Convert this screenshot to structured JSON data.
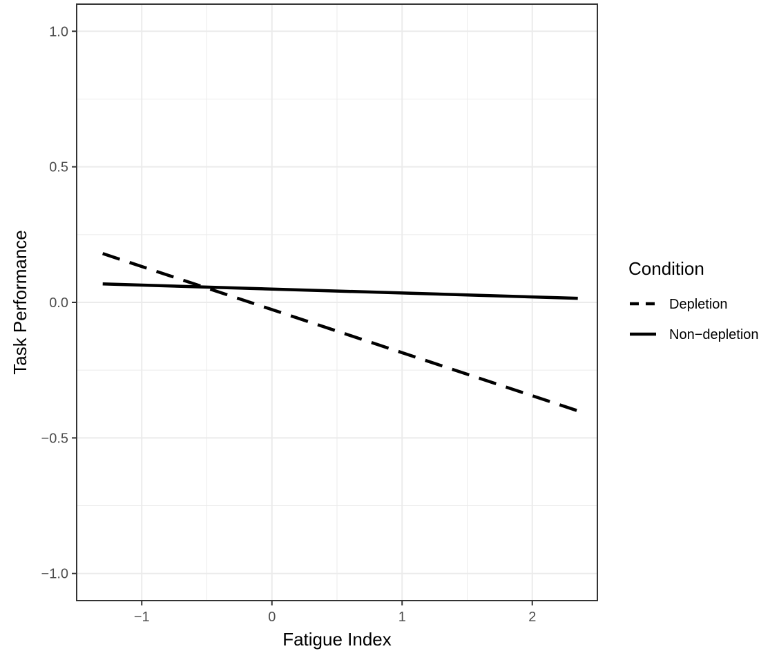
{
  "chart_data": {
    "type": "line",
    "title": "",
    "xlabel": "Fatigue Index",
    "ylabel": "Task Performance",
    "xlim": [
      -1.5,
      2.5
    ],
    "ylim": [
      -1.1,
      1.1
    ],
    "x_ticks": [
      -1,
      0,
      1,
      2
    ],
    "x_tick_labels": [
      "−1",
      "0",
      "1",
      "2"
    ],
    "y_ticks": [
      1.0,
      0.5,
      0.0,
      -0.5,
      -1.0
    ],
    "y_tick_labels": [
      "1.0",
      "0.5",
      "0.0",
      "−0.5",
      "−1.0"
    ],
    "grid": true,
    "legend": {
      "title": "Condition",
      "placement": "right",
      "entries": [
        "Depletion",
        "Non−depletion"
      ]
    },
    "series": [
      {
        "name": "Depletion",
        "style": "dashed",
        "x": [
          -1.3,
          2.35
        ],
        "y": [
          0.18,
          -0.4
        ]
      },
      {
        "name": "Non−depletion",
        "style": "solid",
        "x": [
          -1.3,
          2.35
        ],
        "y": [
          0.068,
          0.015
        ]
      }
    ],
    "colors": {
      "line": "#000000",
      "grid": "#ebebeb",
      "panel_border": "#333333",
      "tick_text": "#4d4d4d"
    }
  }
}
